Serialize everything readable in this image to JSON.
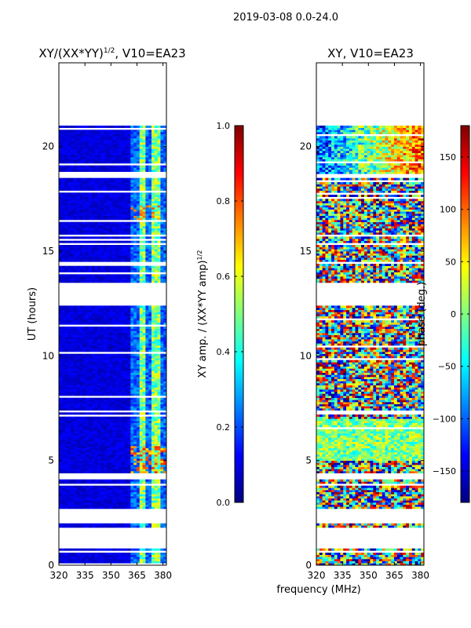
{
  "suptitle": "2019-03-08 0.0-24.0",
  "xlabel": "frequency (MHz)",
  "chart_data": [
    {
      "type": "heatmap",
      "title_main": "XY/(XX*YY)",
      "title_sup": "1/2",
      "title_tail": ", V10=EA23",
      "ylabel": "UT (hours)",
      "xlim": [
        320,
        382
      ],
      "ylim": [
        0,
        24
      ],
      "xticks": [
        320,
        335,
        350,
        365,
        380
      ],
      "yticks": [
        0,
        5,
        10,
        15,
        20
      ],
      "gaps_hours": [
        [
          0.55,
          0.7
        ],
        [
          0.85,
          1.8
        ],
        [
          2.05,
          2.7
        ],
        [
          2.95,
          3.05
        ],
        [
          3.8,
          3.95
        ],
        [
          4.1,
          4.4
        ],
        [
          6.7,
          6.75
        ],
        [
          7.35,
          7.45
        ],
        [
          12.35,
          13.5
        ],
        [
          14.4,
          14.5
        ],
        [
          15.3,
          15.45
        ],
        [
          15.75,
          15.85
        ],
        [
          18.2,
          18.25
        ],
        [
          18.5,
          18.7
        ],
        [
          21.0,
          24.0
        ]
      ],
      "colorbar": {
        "label_main": "XY amp. / (XX*YY amp)",
        "label_sup": "1/2",
        "range": [
          0.0,
          1.0
        ],
        "ticks": [
          "0.0",
          "0.2",
          "0.4",
          "0.6",
          "0.8",
          "1.0"
        ]
      }
    },
    {
      "type": "heatmap",
      "title": "XY, V10=EA23",
      "xlim": [
        320,
        382
      ],
      "ylim": [
        0,
        24
      ],
      "xticks": [
        320,
        335,
        350,
        365,
        380
      ],
      "yticks": [
        0,
        5,
        10,
        15,
        20
      ],
      "gaps_hours": [
        [
          0.55,
          0.7
        ],
        [
          0.85,
          1.8
        ],
        [
          2.05,
          2.7
        ],
        [
          2.95,
          3.05
        ],
        [
          3.8,
          3.95
        ],
        [
          4.1,
          4.4
        ],
        [
          6.7,
          6.75
        ],
        [
          7.35,
          7.45
        ],
        [
          12.35,
          13.5
        ],
        [
          14.4,
          14.5
        ],
        [
          15.3,
          15.45
        ],
        [
          15.75,
          15.85
        ],
        [
          18.2,
          18.25
        ],
        [
          18.5,
          18.7
        ],
        [
          21.0,
          24.0
        ]
      ],
      "colorbar": {
        "label": "phase (deg.)",
        "range": [
          -180,
          180
        ],
        "ticks": [
          "150",
          "100",
          "50",
          "0",
          "−50",
          "−100",
          "−150"
        ]
      }
    }
  ]
}
